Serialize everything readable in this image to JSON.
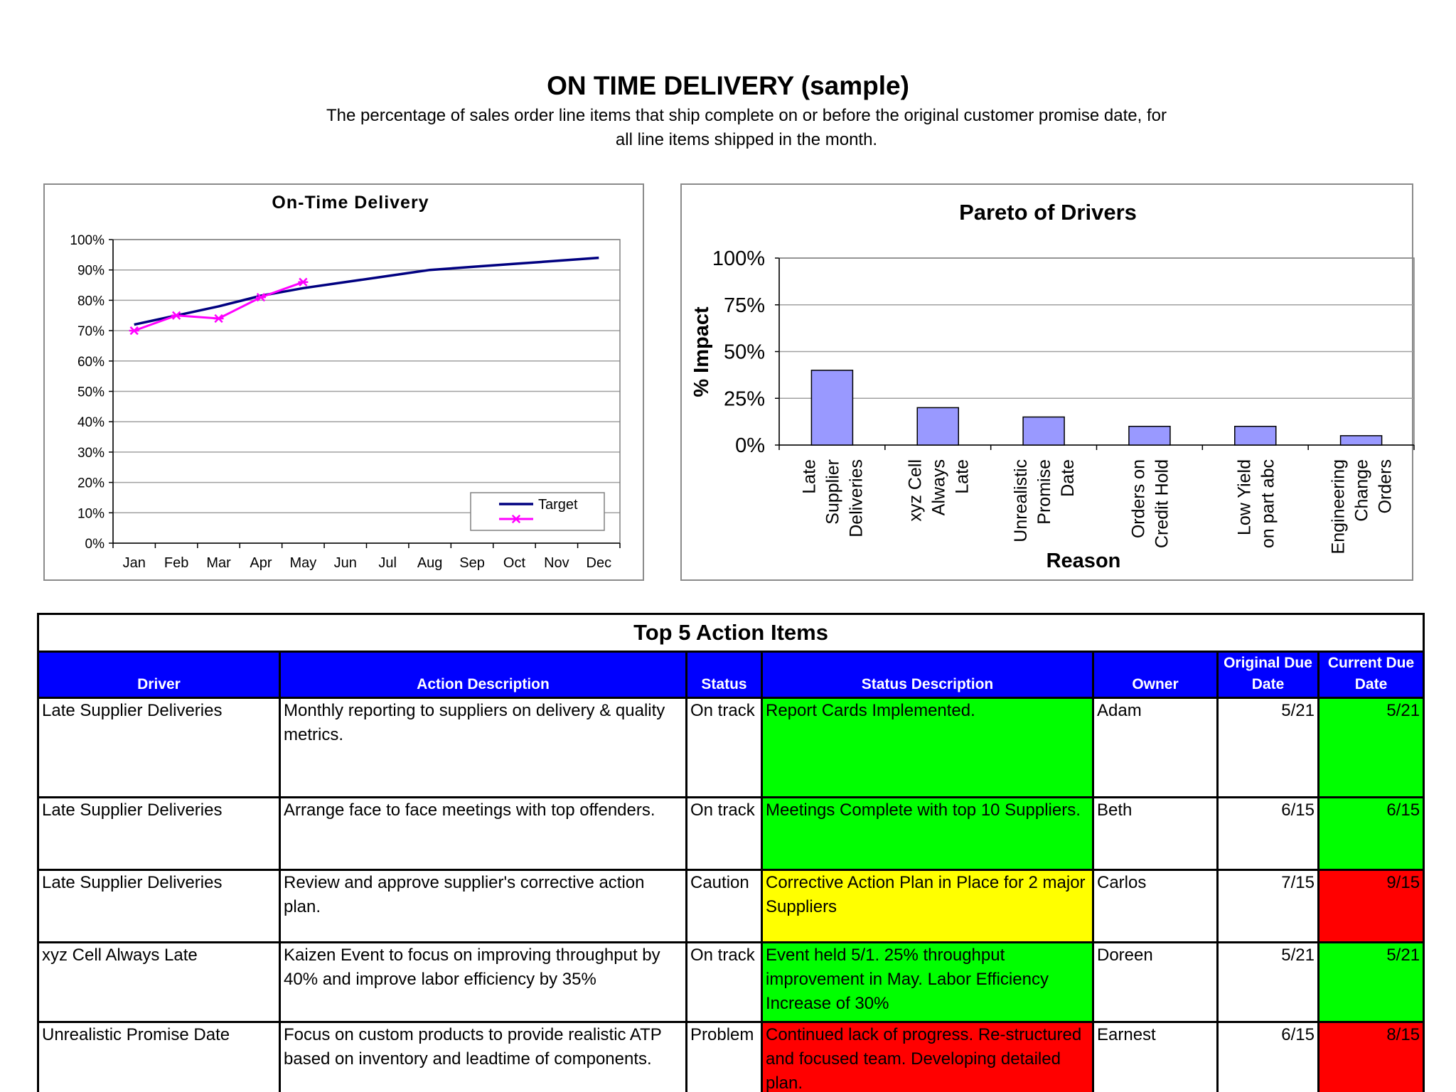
{
  "header": {
    "title": "ON TIME DELIVERY (sample)",
    "subtitle_line1": "The percentage of sales order line items that ship complete on or before the original customer promise date, for",
    "subtitle_line2": "all line items shipped in the month."
  },
  "chart_data": [
    {
      "type": "line",
      "title": "On-Time Delivery",
      "xlabel": "",
      "ylabel": "",
      "categories": [
        "Jan",
        "Feb",
        "Mar",
        "Apr",
        "May",
        "Jun",
        "Jul",
        "Aug",
        "Sep",
        "Oct",
        "Nov",
        "Dec"
      ],
      "ylim": [
        0,
        100
      ],
      "yticks": [
        "0%",
        "10%",
        "20%",
        "30%",
        "40%",
        "50%",
        "60%",
        "70%",
        "80%",
        "90%",
        "100%"
      ],
      "grid": true,
      "legend": "bottom-right",
      "series": [
        {
          "name": "Target",
          "color": "#000080",
          "marker": "none",
          "values": [
            72,
            75,
            78,
            81.5,
            84,
            86,
            88,
            90,
            91,
            92,
            93,
            94
          ]
        },
        {
          "name": "",
          "color": "#ff00ff",
          "marker": "star",
          "values": [
            70,
            75,
            74,
            81,
            86,
            null,
            null,
            null,
            null,
            null,
            null,
            null
          ]
        }
      ]
    },
    {
      "type": "bar",
      "title": "Pareto of Drivers",
      "xlabel": "Reason",
      "ylabel": "% Impact",
      "categories": [
        [
          "Late",
          "Supplier",
          "Deliveries"
        ],
        [
          "xyz Cell",
          "Always",
          "Late"
        ],
        [
          "Unrealistic",
          "Promise",
          "Date"
        ],
        [
          "Orders on",
          "Credit Hold"
        ],
        [
          "Low Yield",
          "on part abc"
        ],
        [
          "Engineering",
          "Change",
          "Orders"
        ]
      ],
      "values": [
        40,
        20,
        15,
        10,
        10,
        5
      ],
      "ylim": [
        0,
        100
      ],
      "yticks": [
        "0%",
        "25%",
        "50%",
        "75%",
        "100%"
      ],
      "grid": true,
      "bar_color": "#9999ff"
    }
  ],
  "table": {
    "title": "Top 5 Action Items",
    "headers": {
      "driver": "Driver",
      "action": "Action Description",
      "status": "Status",
      "status_desc": "Status Description",
      "owner": "Owner",
      "orig_due": "Original Due Date",
      "curr_due": "Current Due Date"
    },
    "rows": [
      {
        "driver": "Late Supplier Deliveries",
        "action": "Monthly reporting to suppliers on delivery & quality metrics.",
        "status": "On track",
        "status_desc": "Report Cards Implemented.",
        "owner": "Adam",
        "orig_due": "5/21",
        "curr_due": "5/21"
      },
      {
        "driver": "Late Supplier Deliveries",
        "action": "Arrange face to face meetings with top offenders.",
        "status": "On track",
        "status_desc": "Meetings Complete with top 10 Suppliers.",
        "owner": "Beth",
        "orig_due": "6/15",
        "curr_due": "6/15"
      },
      {
        "driver": "Late Supplier Deliveries",
        "action": "Review and approve supplier's corrective action plan.",
        "status": "Caution",
        "status_desc": "Corrective Action Plan in Place for 2 major Suppliers",
        "owner": "Carlos",
        "orig_due": "7/15",
        "curr_due": "9/15"
      },
      {
        "driver": "xyz Cell Always Late",
        "action": "Kaizen Event to focus on improving throughput by 40% and improve labor efficiency by 35%",
        "status": "On track",
        "status_desc": "Event held 5/1. 25% throughput improvement in May.  Labor Efficiency Increase of 30%",
        "owner": "Doreen",
        "orig_due": "5/21",
        "curr_due": "5/21"
      },
      {
        "driver": "Unrealistic Promise Date",
        "action": "Focus on custom products to provide realistic ATP based on inventory and leadtime of components.",
        "status": "Problem",
        "status_desc": "Continued lack of progress.  Re-structured and focused team. Developing detailed plan.",
        "owner": "Earnest",
        "orig_due": "6/15",
        "curr_due": "8/15"
      }
    ]
  },
  "colors": {
    "header_blue": "#0000ff",
    "status_green": "#00ff00",
    "status_yellow": "#ffff00",
    "status_red": "#ff0000"
  }
}
